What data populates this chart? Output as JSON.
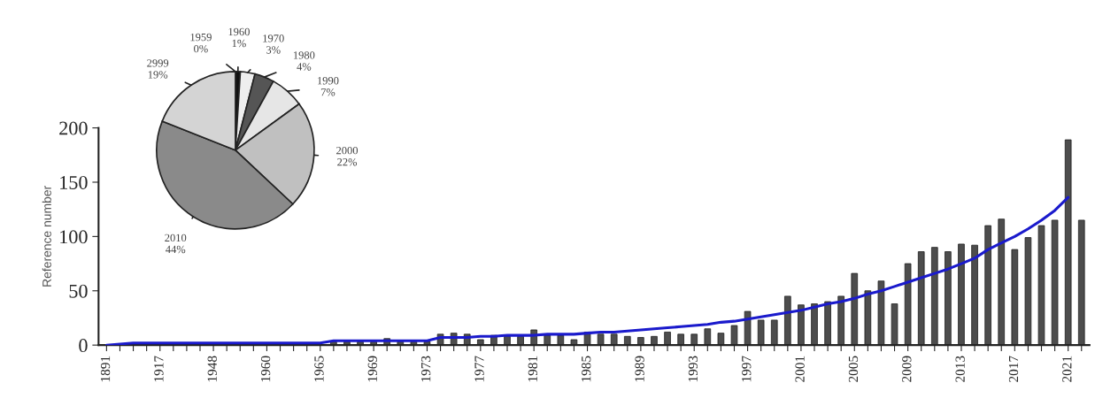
{
  "chart_data": [
    {
      "type": "bar",
      "ylabel": "Reference number",
      "categories": [
        "1891",
        null,
        null,
        null,
        "1917",
        null,
        null,
        null,
        "1948",
        null,
        null,
        null,
        "1960",
        null,
        null,
        null,
        "1965",
        null,
        null,
        null,
        "1969",
        null,
        null,
        null,
        "1973",
        null,
        null,
        null,
        "1977",
        null,
        null,
        null,
        "1981",
        null,
        null,
        null,
        "1985",
        null,
        null,
        null,
        "1989",
        null,
        null,
        null,
        "1993",
        null,
        null,
        null,
        "1997",
        null,
        null,
        null,
        "2001",
        null,
        null,
        null,
        "2005",
        null,
        null,
        null,
        "2009",
        null,
        null,
        null,
        "2013",
        null,
        null,
        null,
        "2017",
        null,
        null,
        null,
        "2021",
        null
      ],
      "series": [
        {
          "type": "bar",
          "color": "#4d4d4d",
          "values": [
            null,
            null,
            null,
            null,
            null,
            null,
            null,
            null,
            null,
            null,
            null,
            null,
            null,
            null,
            null,
            null,
            null,
            3,
            3,
            3,
            3,
            6,
            3,
            3,
            3,
            10,
            11,
            10,
            5,
            9,
            8,
            8,
            14,
            9,
            9,
            5,
            12,
            10,
            10,
            8,
            7,
            8,
            12,
            10,
            10,
            15,
            11,
            18,
            31,
            23,
            23,
            45,
            37,
            38,
            40,
            45,
            66,
            50,
            59,
            38,
            75,
            86,
            90,
            86,
            93,
            92,
            110,
            116,
            88,
            99,
            110,
            115,
            189,
            115
          ]
        },
        {
          "type": "line",
          "color": "#1a1acc",
          "values": [
            0,
            1,
            2,
            2,
            2,
            2,
            2,
            2,
            2,
            2,
            2,
            2,
            2,
            2,
            2,
            2,
            2,
            4,
            4,
            4,
            4,
            4,
            4,
            4,
            4,
            7,
            7,
            7,
            8,
            8,
            9,
            9,
            9,
            10,
            10,
            10,
            11,
            12,
            12,
            13,
            14,
            15,
            16,
            17,
            18,
            19,
            21,
            22,
            24,
            26,
            28,
            30,
            32,
            35,
            38,
            40,
            43,
            47,
            50,
            54,
            58,
            62,
            66,
            70,
            75,
            80,
            88,
            94,
            100,
            107,
            115,
            124,
            136,
            null
          ]
        }
      ],
      "ylim": [
        0,
        200
      ],
      "yticks": [
        0,
        50,
        100,
        150,
        200
      ],
      "grid": false,
      "legend": false
    },
    {
      "type": "pie",
      "categories": [
        "1959",
        "1960",
        "1970",
        "1980",
        "1990",
        "2000",
        "2010",
        "2999"
      ],
      "values": [
        0,
        1,
        3,
        4,
        7,
        22,
        44,
        19
      ],
      "value_labels": [
        "0%",
        "1%",
        "3%",
        "4%",
        "7%",
        "22%",
        "44%",
        "19%"
      ],
      "colors": [
        "#000000",
        "#111111",
        "#eeeeee",
        "#555555",
        "#e6e6e6",
        "#c0c0c0",
        "#8a8a8a",
        "#d4d4d4"
      ]
    }
  ]
}
